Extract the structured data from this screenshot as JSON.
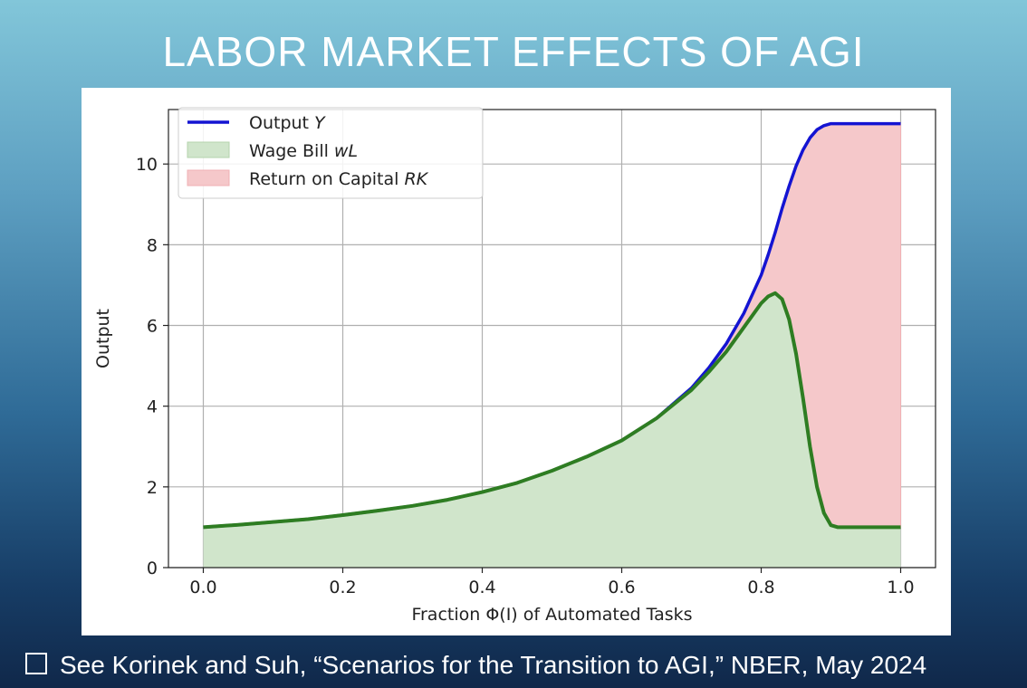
{
  "slide": {
    "title": "LABOR MARKET EFFECTS OF AGI",
    "caption": "See Korinek and Suh, “Scenarios for the Transition to AGI,” NBER, May 2024",
    "caption_bullet_icon": "empty-square-icon"
  },
  "chart_data": {
    "type": "area",
    "xlabel": "Fraction Φ(I) of Automated Tasks",
    "ylabel": "Output",
    "xlim": [
      -0.05,
      1.05
    ],
    "ylim": [
      0,
      11.35
    ],
    "xticks": [
      0.0,
      0.2,
      0.4,
      0.6,
      0.8,
      1.0
    ],
    "xtick_labels": [
      "0.0",
      "0.2",
      "0.4",
      "0.6",
      "0.8",
      "1.0"
    ],
    "yticks": [
      0,
      2,
      4,
      6,
      8,
      10
    ],
    "ytick_labels": [
      "0",
      "2",
      "4",
      "6",
      "8",
      "10"
    ],
    "grid": true,
    "legend_position": "top-left",
    "x": [
      0.0,
      0.05,
      0.1,
      0.15,
      0.2,
      0.25,
      0.3,
      0.35,
      0.4,
      0.45,
      0.5,
      0.55,
      0.6,
      0.65,
      0.7,
      0.725,
      0.75,
      0.775,
      0.8,
      0.81,
      0.82,
      0.83,
      0.84,
      0.85,
      0.86,
      0.87,
      0.88,
      0.89,
      0.9,
      0.91,
      0.95,
      1.0
    ],
    "series": [
      {
        "name": "Output Y",
        "legend_label": "Output",
        "legend_symbol": "Y",
        "style": "line",
        "color": "#1414d2",
        "values": [
          1.0,
          1.06,
          1.13,
          1.2,
          1.3,
          1.41,
          1.53,
          1.68,
          1.87,
          2.1,
          2.4,
          2.75,
          3.15,
          3.7,
          4.45,
          4.95,
          5.55,
          6.3,
          7.25,
          7.75,
          8.3,
          8.9,
          9.45,
          9.95,
          10.35,
          10.65,
          10.85,
          10.95,
          11.0,
          11.0,
          11.0,
          11.0
        ]
      },
      {
        "name": "Wage Bill wL",
        "legend_label": "Wage Bill",
        "legend_symbol": "wL",
        "style": "line+area",
        "color": "#2e7d22",
        "fill": "#d0e5cb",
        "values": [
          1.0,
          1.06,
          1.13,
          1.2,
          1.3,
          1.41,
          1.53,
          1.68,
          1.87,
          2.1,
          2.4,
          2.75,
          3.15,
          3.7,
          4.4,
          4.85,
          5.35,
          5.95,
          6.55,
          6.72,
          6.8,
          6.65,
          6.15,
          5.3,
          4.2,
          3.0,
          2.0,
          1.35,
          1.05,
          1.0,
          1.0,
          1.0
        ]
      },
      {
        "name": "Return on Capital RK",
        "legend_label": "Return on Capital",
        "legend_symbol": "RK",
        "style": "area-between",
        "fill": "#f5c8ca",
        "edge": "#f0b1b4"
      }
    ]
  }
}
